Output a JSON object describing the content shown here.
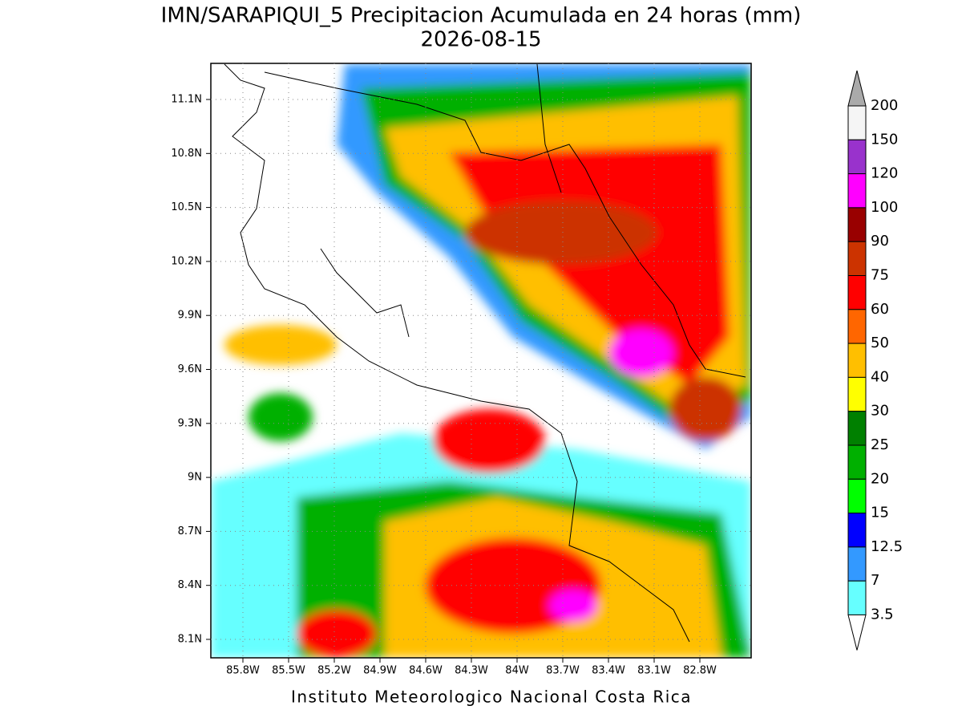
{
  "header": {
    "title": "IMN/SARAPIQUI_5 Precipitacion Acumulada en 24 horas (mm)",
    "date": "2026-08-15"
  },
  "map": {
    "lat_labels": [
      "11.1N",
      "10.8N",
      "10.5N",
      "10.2N",
      "9.9N",
      "9.6N",
      "9.3N",
      "9N",
      "8.7N",
      "8.4N",
      "8.1N"
    ],
    "lon_labels": [
      "85.8W",
      "85.5W",
      "85.2W",
      "84.9W",
      "84.6W",
      "84.3W",
      "84W",
      "83.7W",
      "83.4W",
      "83.1W",
      "82.8W"
    ]
  },
  "colorbar": {
    "labels": [
      "200",
      "150",
      "120",
      "100",
      "90",
      "75",
      "60",
      "50",
      "40",
      "30",
      "25",
      "20",
      "15",
      "12.5",
      "7",
      "3.5"
    ],
    "top_color": "#aaaaaa",
    "colors": [
      "#f5f5f5",
      "#9932cc",
      "#ff00ff",
      "#990000",
      "#cc3300",
      "#ff0000",
      "#ff6600",
      "#ffbf00",
      "#ffff00",
      "#008000",
      "#00b000",
      "#00ff00",
      "#0000ff",
      "#3399ff",
      "#66ffff"
    ],
    "bottom_color": "#ffffff"
  },
  "footer": "Instituto Meteorologico Nacional Costa Rica"
}
